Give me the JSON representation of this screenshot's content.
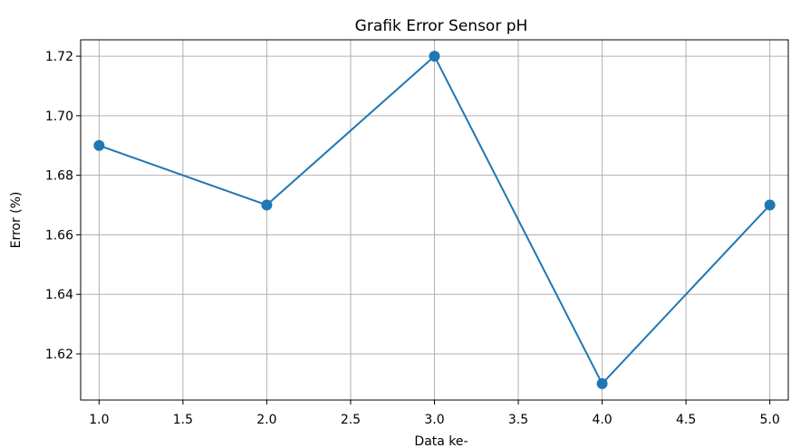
{
  "chart_data": {
    "type": "line",
    "title": "Grafik Error Sensor pH",
    "xlabel": "Data ke-",
    "ylabel": "Error (%)",
    "x": [
      1,
      2,
      3,
      4,
      5
    ],
    "series": [
      {
        "values": [
          1.69,
          1.67,
          1.72,
          1.61,
          1.67
        ],
        "color": "#1f77b4",
        "marker": "circle"
      }
    ],
    "xlim": [
      0.89,
      5.11
    ],
    "ylim": [
      1.6045,
      1.7255
    ],
    "xticks": [
      1.0,
      1.5,
      2.0,
      2.5,
      3.0,
      3.5,
      4.0,
      4.5,
      5.0
    ],
    "xtick_labels": [
      "1.0",
      "1.5",
      "2.0",
      "2.5",
      "3.0",
      "3.5",
      "4.0",
      "4.5",
      "5.0"
    ],
    "yticks": [
      1.62,
      1.64,
      1.66,
      1.68,
      1.7,
      1.72
    ],
    "ytick_labels": [
      "1.62",
      "1.64",
      "1.66",
      "1.68",
      "1.70",
      "1.72"
    ],
    "grid": true
  }
}
